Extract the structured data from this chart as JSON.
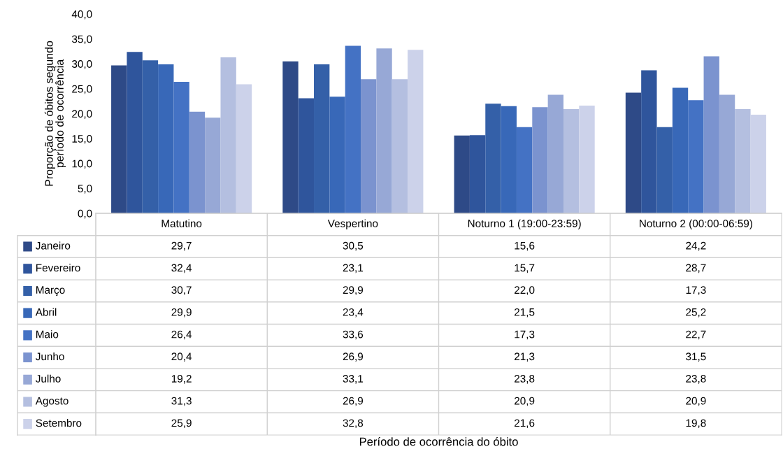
{
  "chart_data": {
    "type": "bar",
    "ylabel": "Proporção de óbitos segundo período de ocorrência",
    "annotations": [
      "Período de ocorrência do óbito"
    ],
    "categories": [
      "Matutino",
      "Vespertino",
      "Noturno 1 (19:00-23:59)",
      "Noturno 2 (00:00-06:59)"
    ],
    "ylim": [
      0,
      40
    ],
    "yticks": [
      {
        "value": 0,
        "label": "0,0"
      },
      {
        "value": 5,
        "label": "5,0"
      },
      {
        "value": 10,
        "label": "10,0"
      },
      {
        "value": 15,
        "label": "15,0"
      },
      {
        "value": 20,
        "label": "20,0"
      },
      {
        "value": 25,
        "label": "25,0"
      },
      {
        "value": 30,
        "label": "30,0"
      },
      {
        "value": 35,
        "label": "35,0"
      },
      {
        "value": 40,
        "label": "40,0"
      }
    ],
    "grid": false,
    "legend": "bottom left",
    "data_labels": true,
    "series": [
      {
        "name": "Janeiro",
        "color": "#2e4a87",
        "values": [
          29.7,
          30.5,
          15.6,
          24.2
        ],
        "value_labels": [
          "29,7",
          "30,5",
          "15,6",
          "24,2"
        ]
      },
      {
        "name": "Fevereiro",
        "color": "#2f559c",
        "values": [
          32.4,
          23.1,
          15.7,
          28.7
        ],
        "value_labels": [
          "32,4",
          "23,1",
          "15,7",
          "28,7"
        ]
      },
      {
        "name": "Março",
        "color": "#3460a8",
        "values": [
          30.7,
          29.9,
          22.0,
          17.3
        ],
        "value_labels": [
          "30,7",
          "29,9",
          "22,0",
          "17,3"
        ]
      },
      {
        "name": "Abril",
        "color": "#3868b8",
        "values": [
          29.9,
          23.4,
          21.5,
          25.2
        ],
        "value_labels": [
          "29,9",
          "23,4",
          "21,5",
          "25,2"
        ]
      },
      {
        "name": "Maio",
        "color": "#4472c4",
        "values": [
          26.4,
          33.6,
          17.3,
          22.7
        ],
        "value_labels": [
          "26,4",
          "33,6",
          "17,3",
          "22,7"
        ]
      },
      {
        "name": "Junho",
        "color": "#7b93cf",
        "values": [
          20.4,
          26.9,
          21.3,
          31.5
        ],
        "value_labels": [
          "20,4",
          "26,9",
          "21,3",
          "31,5"
        ]
      },
      {
        "name": "Julho",
        "color": "#97a8d6",
        "values": [
          19.2,
          33.1,
          23.8,
          23.8
        ],
        "value_labels": [
          "19,2",
          "33,1",
          "23,8",
          "23,8"
        ]
      },
      {
        "name": "Agosto",
        "color": "#b4bfe0",
        "values": [
          31.3,
          26.9,
          20.9,
          20.9
        ],
        "value_labels": [
          "31,3",
          "26,9",
          "20,9",
          "20,9"
        ]
      },
      {
        "name": "Setembro",
        "color": "#ccd2ea",
        "values": [
          25.9,
          32.8,
          21.6,
          19.8
        ],
        "value_labels": [
          "25,9",
          "32,8",
          "21,6",
          "19,8"
        ]
      }
    ]
  }
}
